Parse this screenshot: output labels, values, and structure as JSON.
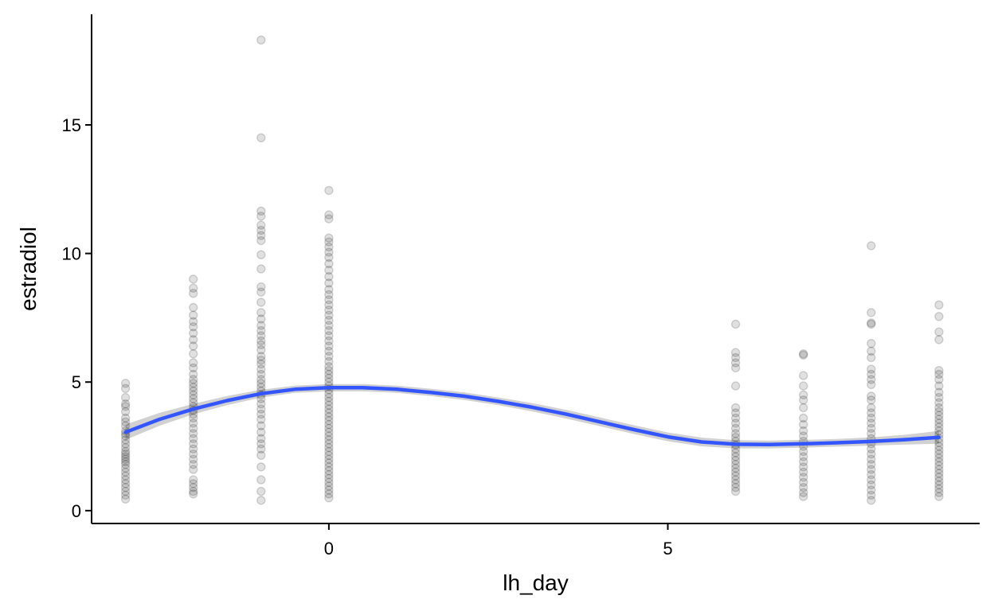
{
  "chart_data": {
    "type": "scatter",
    "title": "",
    "xlabel": "lh_day",
    "ylabel": "estradiol",
    "xlim": [
      -3.5,
      9.6
    ],
    "ylim": [
      -0.5,
      19.3
    ],
    "x_ticks": [
      {
        "value": 0,
        "label": "0"
      },
      {
        "value": 5,
        "label": "5"
      }
    ],
    "y_ticks": [
      {
        "value": 0,
        "label": "0"
      },
      {
        "value": 5,
        "label": "5"
      },
      {
        "value": 10,
        "label": "10"
      },
      {
        "value": 15,
        "label": "15"
      }
    ],
    "grid": false,
    "legend": "none",
    "point_color": "#000000",
    "point_alpha": 0.15,
    "smooth_color": "#3355FF",
    "ribbon_color": "#CCCCCC",
    "points_by_x": [
      {
        "x": -3,
        "y": [
          4.95,
          4.75,
          4.4,
          4.15,
          4.05,
          3.85,
          3.6,
          3.45,
          3.3,
          3.1,
          3.0,
          2.9,
          2.75,
          2.6,
          2.45,
          2.3,
          2.2,
          2.1,
          2.0,
          1.9,
          1.8,
          1.65,
          1.5,
          1.35,
          1.2,
          1.05,
          0.9,
          0.75,
          0.6,
          0.45
        ]
      },
      {
        "x": -2,
        "y": [
          9.0,
          8.65,
          8.45,
          7.9,
          7.6,
          7.35,
          7.15,
          6.9,
          6.65,
          6.4,
          6.1,
          5.75,
          5.55,
          5.3,
          5.1,
          4.95,
          4.8,
          4.65,
          4.5,
          4.35,
          4.2,
          4.05,
          3.9,
          3.75,
          3.6,
          3.4,
          3.2,
          3.0,
          2.8,
          2.6,
          2.4,
          2.2,
          2.0,
          1.8,
          1.6,
          1.2,
          1.05,
          0.9,
          0.75,
          0.65
        ]
      },
      {
        "x": -1,
        "y": [
          18.3,
          14.5,
          11.65,
          11.45,
          11.1,
          10.9,
          10.7,
          10.5,
          9.95,
          9.4,
          8.7,
          8.5,
          8.1,
          7.7,
          7.45,
          7.2,
          7.0,
          6.8,
          6.6,
          6.45,
          6.25,
          6.0,
          5.85,
          5.7,
          5.5,
          5.3,
          5.1,
          4.95,
          4.8,
          4.65,
          4.5,
          4.35,
          4.15,
          3.95,
          3.75,
          3.55,
          3.3,
          3.05,
          2.8,
          2.6,
          2.4,
          2.15,
          1.7,
          1.2,
          0.75,
          0.4
        ]
      },
      {
        "x": 0,
        "y": [
          12.45,
          11.5,
          11.35,
          10.6,
          10.45,
          10.25,
          10.05,
          9.85,
          9.6,
          9.35,
          9.1,
          8.85,
          8.6,
          8.4,
          8.2,
          8.0,
          7.8,
          7.6,
          7.4,
          7.2,
          7.0,
          6.8,
          6.6,
          6.4,
          6.2,
          6.0,
          5.8,
          5.6,
          5.45,
          5.3,
          5.15,
          5.0,
          4.85,
          4.7,
          4.55,
          4.4,
          4.25,
          4.1,
          3.95,
          3.8,
          3.65,
          3.5,
          3.35,
          3.2,
          3.05,
          2.9,
          2.75,
          2.6,
          2.45,
          2.3,
          2.15,
          2.0,
          1.85,
          1.7,
          1.55,
          1.4,
          1.25,
          1.1,
          0.95,
          0.8,
          0.65,
          0.5
        ]
      },
      {
        "x": 6,
        "y": [
          7.25,
          6.15,
          5.95,
          5.75,
          5.55,
          4.85,
          4.0,
          3.8,
          3.6,
          3.4,
          3.2,
          3.0,
          2.85,
          2.7,
          2.55,
          2.4,
          2.25,
          2.1,
          1.95,
          1.8,
          1.65,
          1.5,
          1.35,
          1.2,
          1.05,
          0.9,
          0.75
        ]
      },
      {
        "x": 7,
        "y": [
          6.1,
          6.05,
          5.25,
          4.85,
          4.5,
          4.3,
          4.0,
          3.6,
          3.35,
          3.1,
          2.9,
          2.7,
          2.5,
          2.3,
          2.1,
          1.9,
          1.7,
          1.5,
          1.3,
          1.1,
          0.9,
          0.7,
          0.55
        ]
      },
      {
        "x": 8,
        "y": [
          10.3,
          7.7,
          7.3,
          7.25,
          6.5,
          6.2,
          5.95,
          5.5,
          5.3,
          5.1,
          4.9,
          4.45,
          4.3,
          4.0,
          3.8,
          3.6,
          3.4,
          3.2,
          3.0,
          2.8,
          2.6,
          2.4,
          2.2,
          2.0,
          1.8,
          1.6,
          1.4,
          1.2,
          1.0,
          0.8,
          0.6,
          0.4
        ]
      },
      {
        "x": 9,
        "y": [
          8.0,
          7.55,
          6.95,
          6.65,
          5.45,
          5.3,
          5.1,
          4.85,
          4.6,
          4.4,
          4.2,
          4.0,
          3.85,
          3.7,
          3.55,
          3.4,
          3.25,
          3.1,
          2.95,
          2.8,
          2.65,
          2.5,
          2.35,
          2.2,
          2.05,
          1.9,
          1.75,
          1.6,
          1.45,
          1.3,
          1.15,
          1.0,
          0.85,
          0.7,
          0.55
        ]
      }
    ],
    "smooth": {
      "x": [
        -3,
        -2.5,
        -2,
        -1.5,
        -1,
        -0.5,
        0,
        0.5,
        1,
        1.5,
        2,
        2.5,
        3,
        3.5,
        4,
        4.5,
        5,
        5.5,
        6,
        6.5,
        7,
        7.5,
        8,
        8.5,
        9
      ],
      "y": [
        3.05,
        3.55,
        3.95,
        4.28,
        4.55,
        4.72,
        4.78,
        4.78,
        4.72,
        4.6,
        4.45,
        4.25,
        4.02,
        3.75,
        3.45,
        3.15,
        2.87,
        2.67,
        2.58,
        2.57,
        2.6,
        2.64,
        2.69,
        2.76,
        2.85
      ],
      "ymin": [
        2.75,
        3.3,
        3.75,
        4.1,
        4.4,
        4.58,
        4.64,
        4.64,
        4.58,
        4.46,
        4.3,
        4.1,
        3.86,
        3.58,
        3.28,
        2.98,
        2.7,
        2.5,
        2.42,
        2.42,
        2.45,
        2.49,
        2.53,
        2.57,
        2.6
      ],
      "ymax": [
        3.35,
        3.8,
        4.15,
        4.46,
        4.7,
        4.86,
        4.92,
        4.92,
        4.86,
        4.74,
        4.6,
        4.4,
        4.18,
        3.92,
        3.62,
        3.32,
        3.04,
        2.84,
        2.74,
        2.72,
        2.75,
        2.79,
        2.85,
        2.95,
        3.1
      ]
    }
  }
}
